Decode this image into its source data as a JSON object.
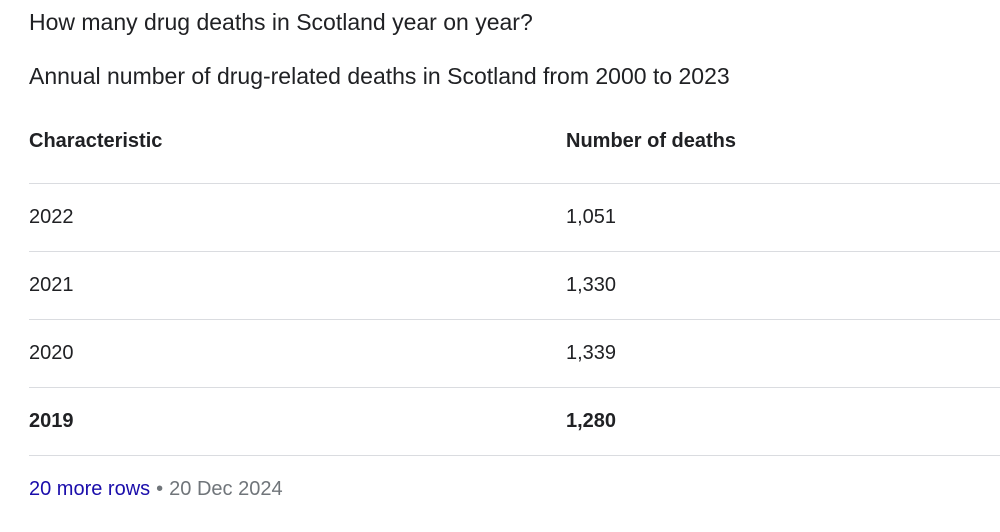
{
  "question": "How many drug deaths in Scotland year on year?",
  "subtitle": "Annual number of drug-related deaths in Scotland from 2000 to 2023",
  "table": {
    "headers": [
      "Characteristic",
      "Number of deaths"
    ],
    "rows": [
      {
        "year": "2022",
        "deaths": "1,051"
      },
      {
        "year": "2021",
        "deaths": "1,330"
      },
      {
        "year": "2020",
        "deaths": "1,339"
      },
      {
        "year": "2019",
        "deaths": "1,280"
      }
    ]
  },
  "footer": {
    "more_rows": "20 more rows",
    "separator": "•",
    "date": "20 Dec 2024"
  }
}
